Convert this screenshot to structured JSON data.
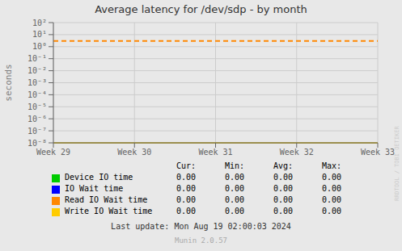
{
  "chart_data": {
    "type": "line",
    "title": "Average latency for /dev/sdp - by month",
    "y_label": "seconds",
    "categories": [
      "Week 29",
      "Week 30",
      "Week 31",
      "Week 32",
      "Week 33"
    ],
    "series": [
      {
        "name": "Device IO time",
        "color": "#00cc00",
        "table_values": [
          "0.00",
          "0.00",
          "0.00",
          "0.00"
        ]
      },
      {
        "name": "IO Wait time",
        "color": "#0000ff",
        "table_values": [
          "0.00",
          "0.00",
          "0.00",
          "0.00"
        ]
      },
      {
        "name": "Read IO Wait time",
        "color": "#ff8800",
        "table_values": [
          "0.00",
          "0.00",
          "0.00",
          "0.00"
        ]
      },
      {
        "name": "Write IO Wait time",
        "color": "#ffcc00",
        "table_values": [
          "0.00",
          "0.00",
          "0.00",
          "0.00"
        ]
      }
    ],
    "table_headers": [
      "Cur:",
      "Min:",
      "Avg:",
      "Max:"
    ],
    "log": "y",
    "ylim": [
      1e-08,
      100
    ],
    "yticks": [
      {
        "value": 1e-08,
        "label": "10⁻⁸"
      },
      {
        "value": 1e-07,
        "label": "10⁻⁷"
      },
      {
        "value": 1e-06,
        "label": "10⁻⁶"
      },
      {
        "value": 1e-05,
        "label": "10⁻⁵"
      },
      {
        "value": 0.0001,
        "label": "10⁻⁴"
      },
      {
        "value": 0.001,
        "label": "10⁻³"
      },
      {
        "value": 0.01,
        "label": "10⁻²"
      },
      {
        "value": 0.1,
        "label": "10⁻¹"
      },
      {
        "value": 1,
        "label": "10⁰"
      },
      {
        "value": 10,
        "label": "10¹"
      },
      {
        "value": 100,
        "label": "10²"
      }
    ],
    "grid": true,
    "reference_lines": [
      {
        "y": 3.0,
        "color": "#ff8800",
        "line_style": "dashed"
      },
      {
        "y": 1e-08,
        "color": "#ccaa00",
        "line_style": "solid"
      }
    ],
    "annotations": [
      "RRDTOOL / TOBI OETIKER",
      "Last update: Mon Aug 19 02:00:03 2024",
      "Munin 2.0.57"
    ]
  }
}
